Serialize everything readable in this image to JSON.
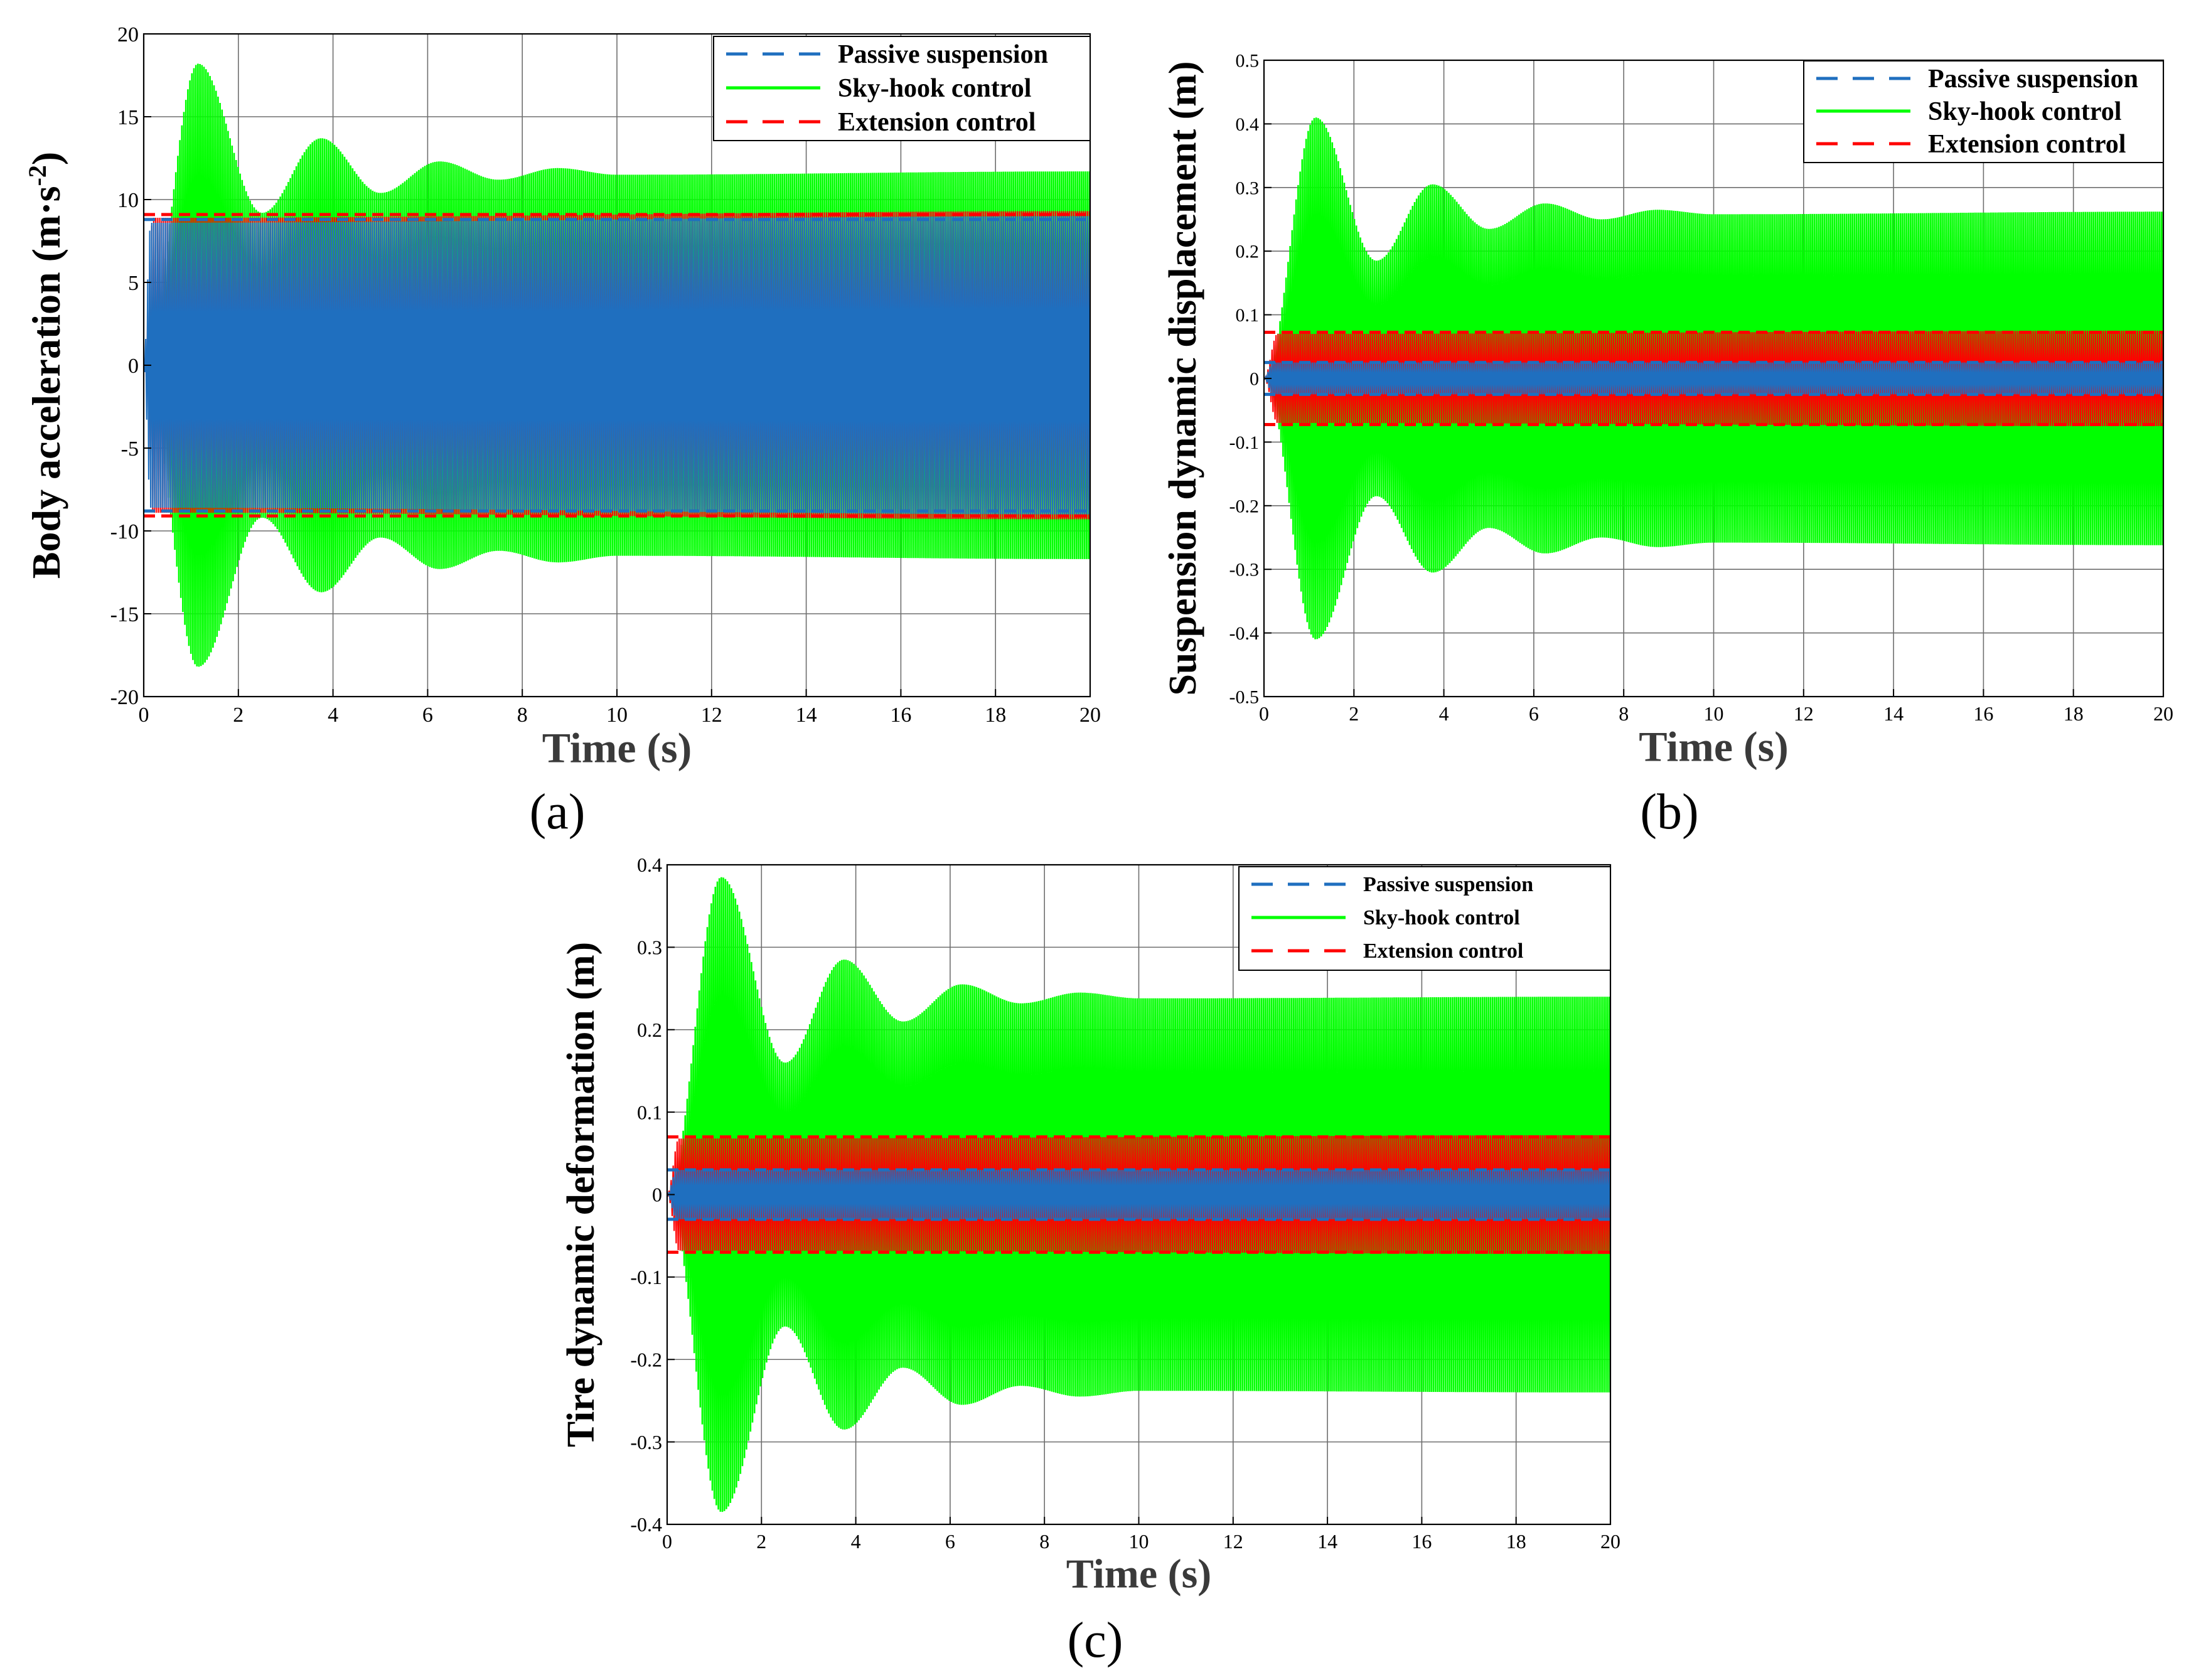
{
  "chart_data": [
    {
      "id": "a",
      "type": "line",
      "panel_label": "(a)",
      "xlabel": "Time (s)",
      "ylabel": "Body acceleration (m·s⁻²)",
      "ylabel_main": "Body acceleration (m·s",
      "ylabel_exp": "-2",
      "ylabel_tail": ")",
      "xlim": [
        0,
        20
      ],
      "ylim": [
        -20,
        20
      ],
      "xticks": [
        0,
        2,
        4,
        6,
        8,
        10,
        12,
        14,
        16,
        18,
        20
      ],
      "yticks": [
        -20,
        -15,
        -10,
        -5,
        0,
        5,
        10,
        15,
        20
      ],
      "grid": true,
      "legend_position": "top-right",
      "series": [
        {
          "name": "Passive suspension",
          "style": "dashed",
          "color": "#1f6fbf",
          "amplitude": 9.0,
          "envelope": [
            [
              0,
              0
            ],
            [
              0.15,
              8.6
            ],
            [
              20,
              9.0
            ]
          ]
        },
        {
          "name": "Sky-hook control",
          "style": "solid",
          "color": "#00ff00",
          "envelope": [
            [
              0,
              0
            ],
            [
              1.15,
              18.2
            ],
            [
              2.5,
              9.2
            ],
            [
              3.75,
              13.7
            ],
            [
              5.0,
              10.4
            ],
            [
              6.25,
              12.3
            ],
            [
              7.5,
              11.2
            ],
            [
              8.75,
              11.9
            ],
            [
              10,
              11.5
            ],
            [
              20,
              11.7
            ]
          ]
        },
        {
          "name": "Extension control",
          "style": "dashed",
          "color": "#ff0000",
          "amplitude": 9.3,
          "envelope": [
            [
              0,
              0
            ],
            [
              0.2,
              8.9
            ],
            [
              20,
              9.3
            ]
          ]
        }
      ]
    },
    {
      "id": "b",
      "type": "line",
      "panel_label": "(b)",
      "xlabel": "Time (s)",
      "ylabel": "Suspension dynamic displacement (m)",
      "xlim": [
        0,
        20
      ],
      "ylim": [
        -0.5,
        0.5
      ],
      "xticks": [
        0,
        2,
        4,
        6,
        8,
        10,
        12,
        14,
        16,
        18,
        20
      ],
      "yticks": [
        -0.5,
        -0.4,
        -0.3,
        -0.2,
        -0.1,
        0,
        0.1,
        0.2,
        0.3,
        0.4,
        0.5
      ],
      "grid": true,
      "legend_position": "top-right",
      "series": [
        {
          "name": "Passive suspension",
          "style": "dashed",
          "color": "#1f6fbf",
          "amplitude": 0.025,
          "envelope": [
            [
              0,
              0
            ],
            [
              0.2,
              0.025
            ],
            [
              20,
              0.025
            ]
          ]
        },
        {
          "name": "Sky-hook control",
          "style": "solid",
          "color": "#00ff00",
          "envelope": [
            [
              0,
              0
            ],
            [
              1.15,
              0.41
            ],
            [
              2.5,
              0.185
            ],
            [
              3.75,
              0.305
            ],
            [
              5.0,
              0.235
            ],
            [
              6.25,
              0.275
            ],
            [
              7.5,
              0.25
            ],
            [
              8.75,
              0.265
            ],
            [
              10,
              0.258
            ],
            [
              20,
              0.262
            ]
          ]
        },
        {
          "name": "Extension control",
          "style": "dashed",
          "color": "#ff0000",
          "amplitude": 0.075,
          "envelope": [
            [
              0,
              0
            ],
            [
              0.3,
              0.07
            ],
            [
              20,
              0.075
            ]
          ]
        }
      ]
    },
    {
      "id": "c",
      "type": "line",
      "panel_label": "(c)",
      "xlabel": "Time (s)",
      "ylabel": "Tire dynamic deformation (m)",
      "xlim": [
        0,
        20
      ],
      "ylim": [
        -0.4,
        0.4
      ],
      "xticks": [
        0,
        2,
        4,
        6,
        8,
        10,
        12,
        14,
        16,
        18,
        20
      ],
      "yticks": [
        -0.4,
        -0.3,
        -0.2,
        -0.1,
        0,
        0.1,
        0.2,
        0.3,
        0.4
      ],
      "grid": true,
      "legend_position": "top-right",
      "series": [
        {
          "name": "Passive suspension",
          "style": "dashed",
          "color": "#1f6fbf",
          "amplitude": 0.03,
          "envelope": [
            [
              0,
              0
            ],
            [
              0.2,
              0.03
            ],
            [
              20,
              0.03
            ]
          ]
        },
        {
          "name": "Sky-hook control",
          "style": "solid",
          "color": "#00ff00",
          "envelope": [
            [
              0,
              0
            ],
            [
              1.15,
              0.385
            ],
            [
              2.5,
              0.16
            ],
            [
              3.75,
              0.285
            ],
            [
              5.0,
              0.21
            ],
            [
              6.25,
              0.255
            ],
            [
              7.5,
              0.232
            ],
            [
              8.75,
              0.245
            ],
            [
              10,
              0.238
            ],
            [
              20,
              0.24
            ]
          ]
        },
        {
          "name": "Extension control",
          "style": "dashed",
          "color": "#ff0000",
          "amplitude": 0.072,
          "envelope": [
            [
              0,
              0
            ],
            [
              0.25,
              0.068
            ],
            [
              20,
              0.072
            ]
          ]
        }
      ]
    }
  ]
}
